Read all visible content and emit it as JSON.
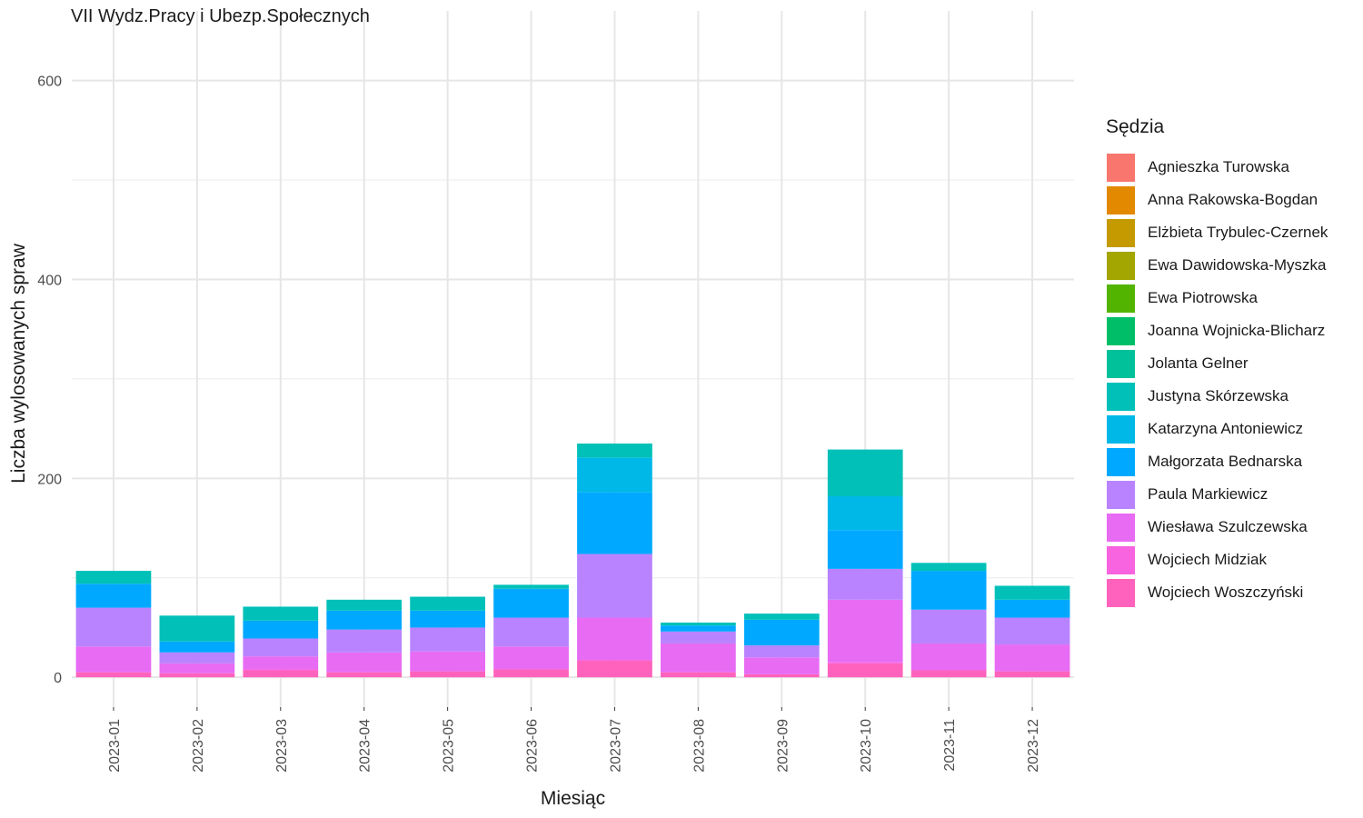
{
  "chart_data": {
    "type": "bar",
    "stacked": true,
    "title": "VII Wydz.Pracy i Ubezp.Społecznych",
    "xlabel": "Miesiąc",
    "ylabel": "Liczba wylosowanych spraw",
    "ylim": [
      -30,
      670
    ],
    "yticks": [
      0,
      200,
      400,
      600
    ],
    "grid": true,
    "legend_title": "Sędzia",
    "legend_position": "right",
    "categories": [
      "2023-01",
      "2023-02",
      "2023-03",
      "2023-04",
      "2023-05",
      "2023-06",
      "2023-07",
      "2023-08",
      "2023-09",
      "2023-10",
      "2023-11",
      "2023-12"
    ],
    "series": [
      {
        "name": "Wojciech Woszczyński",
        "color": "#FF62BC",
        "values": [
          5,
          4,
          7,
          5,
          6,
          8,
          17,
          5,
          3,
          14,
          7,
          6
        ]
      },
      {
        "name": "Wojciech Midziak",
        "color": "#F863DF",
        "values": [
          0,
          0,
          1,
          0,
          0,
          0,
          0,
          0,
          0,
          1,
          0,
          0
        ]
      },
      {
        "name": "Wiesława Szulczewska",
        "color": "#E76BF3",
        "values": [
          26,
          10,
          13,
          20,
          20,
          23,
          43,
          29,
          17,
          63,
          27,
          27
        ]
      },
      {
        "name": "Paula Markiewicz",
        "color": "#B983FF",
        "values": [
          39,
          11,
          18,
          23,
          24,
          29,
          64,
          12,
          12,
          31,
          34,
          27
        ]
      },
      {
        "name": "Małgorzata Bednarska",
        "color": "#00A9FF",
        "values": [
          24,
          11,
          18,
          19,
          17,
          29,
          62,
          6,
          26,
          39,
          39,
          18
        ]
      },
      {
        "name": "Katarzyna Antoniewicz",
        "color": "#00B8E7",
        "values": [
          0,
          0,
          0,
          0,
          0,
          0,
          35,
          0,
          0,
          34,
          0,
          0
        ]
      },
      {
        "name": "Justyna Skórzewska",
        "color": "#00C0B8",
        "values": [
          13,
          26,
          14,
          11,
          14,
          4,
          14,
          3,
          6,
          47,
          8,
          14
        ]
      },
      {
        "name": "Jolanta Gelner",
        "color": "#00C19A",
        "values": [
          0,
          0,
          0,
          0,
          0,
          0,
          0,
          0,
          0,
          0,
          0,
          0
        ]
      },
      {
        "name": "Joanna Wojnicka-Blicharz",
        "color": "#00BE67",
        "values": [
          0,
          0,
          0,
          0,
          0,
          0,
          0,
          0,
          0,
          0,
          0,
          0
        ]
      },
      {
        "name": "Ewa Piotrowska",
        "color": "#53B400",
        "values": [
          0,
          0,
          0,
          0,
          0,
          0,
          0,
          0,
          0,
          0,
          0,
          0
        ]
      },
      {
        "name": "Ewa Dawidowska-Myszka",
        "color": "#A3A500",
        "values": [
          0,
          0,
          0,
          0,
          0,
          0,
          0,
          0,
          0,
          0,
          0,
          0
        ]
      },
      {
        "name": "Elżbieta Trybulec-Czernek",
        "color": "#C49A00",
        "values": [
          0,
          0,
          0,
          0,
          0,
          0,
          0,
          0,
          0,
          0,
          0,
          0
        ]
      },
      {
        "name": "Anna Rakowska-Bogdan",
        "color": "#E38900",
        "values": [
          0,
          0,
          0,
          0,
          0,
          0,
          0,
          0,
          0,
          0,
          0,
          0
        ]
      },
      {
        "name": "Agnieszka Turowska",
        "color": "#F8766D",
        "values": [
          0,
          0,
          0,
          0,
          0,
          0,
          0,
          0,
          0,
          0,
          0,
          0
        ]
      }
    ]
  }
}
